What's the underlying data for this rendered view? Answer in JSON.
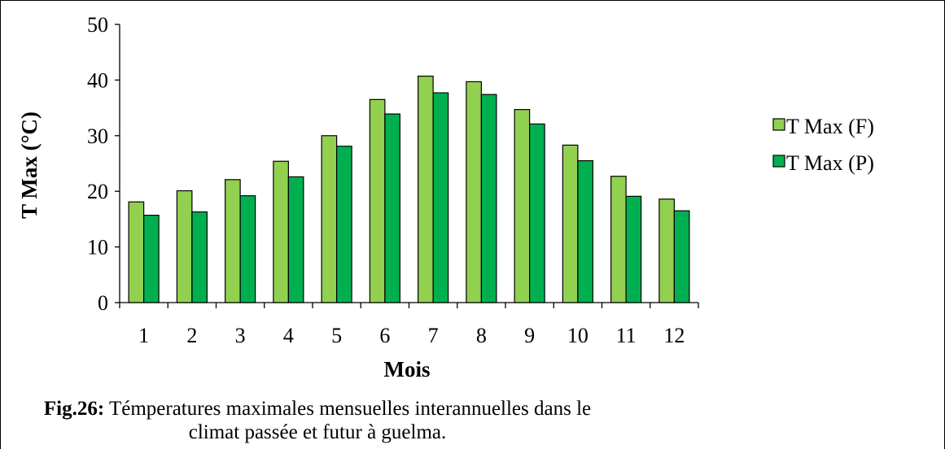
{
  "caption": {
    "label": "Fig.26:",
    "text_line1": "Témperatures maximales mensuelles interannuelles dans le",
    "text_line2": "climat passée et futur à guelma."
  },
  "chart_data": {
    "type": "bar",
    "xlabel": "Mois",
    "ylabel": "T Max (°C)",
    "ylim": [
      0,
      50
    ],
    "yticks": [
      0,
      10,
      20,
      30,
      40,
      50
    ],
    "categories": [
      "1",
      "2",
      "3",
      "4",
      "5",
      "6",
      "7",
      "8",
      "9",
      "10",
      "11",
      "12"
    ],
    "series": [
      {
        "name": "T Max (F)",
        "color": "#92d050",
        "values": [
          18.1,
          20.1,
          22.1,
          25.4,
          30.0,
          36.5,
          40.7,
          39.7,
          34.7,
          28.3,
          22.7,
          18.6
        ]
      },
      {
        "name": "T Max (P)",
        "color": "#00b050",
        "values": [
          15.7,
          16.3,
          19.2,
          22.6,
          28.1,
          33.9,
          37.7,
          37.4,
          32.1,
          25.5,
          19.1,
          16.5
        ]
      }
    ],
    "legend": "right",
    "grid": false
  }
}
